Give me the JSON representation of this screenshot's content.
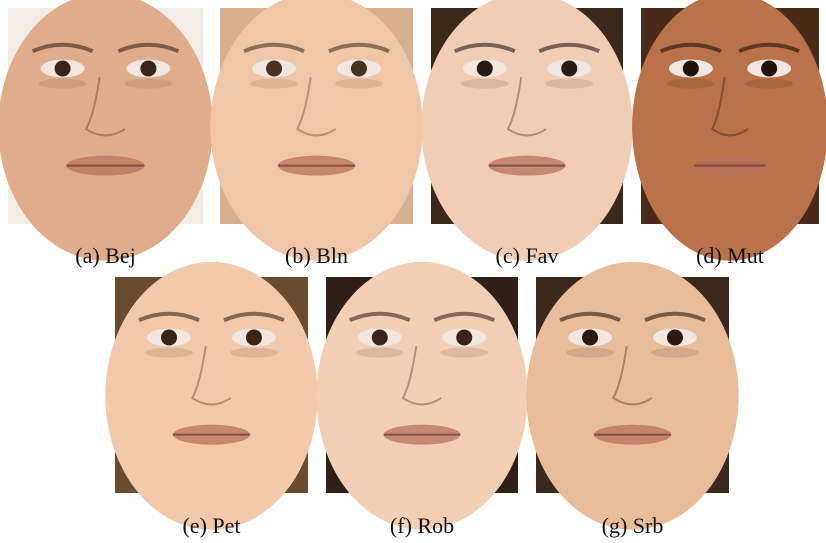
{
  "figures": [
    {
      "caption": "(a) Bej"
    },
    {
      "caption": "(b) Bln"
    },
    {
      "caption": "(c) Fav"
    },
    {
      "caption": "(d) Mut"
    },
    {
      "caption": "(e) Pet"
    },
    {
      "caption": "(f) Rob"
    },
    {
      "caption": "(g) Srb"
    }
  ]
}
